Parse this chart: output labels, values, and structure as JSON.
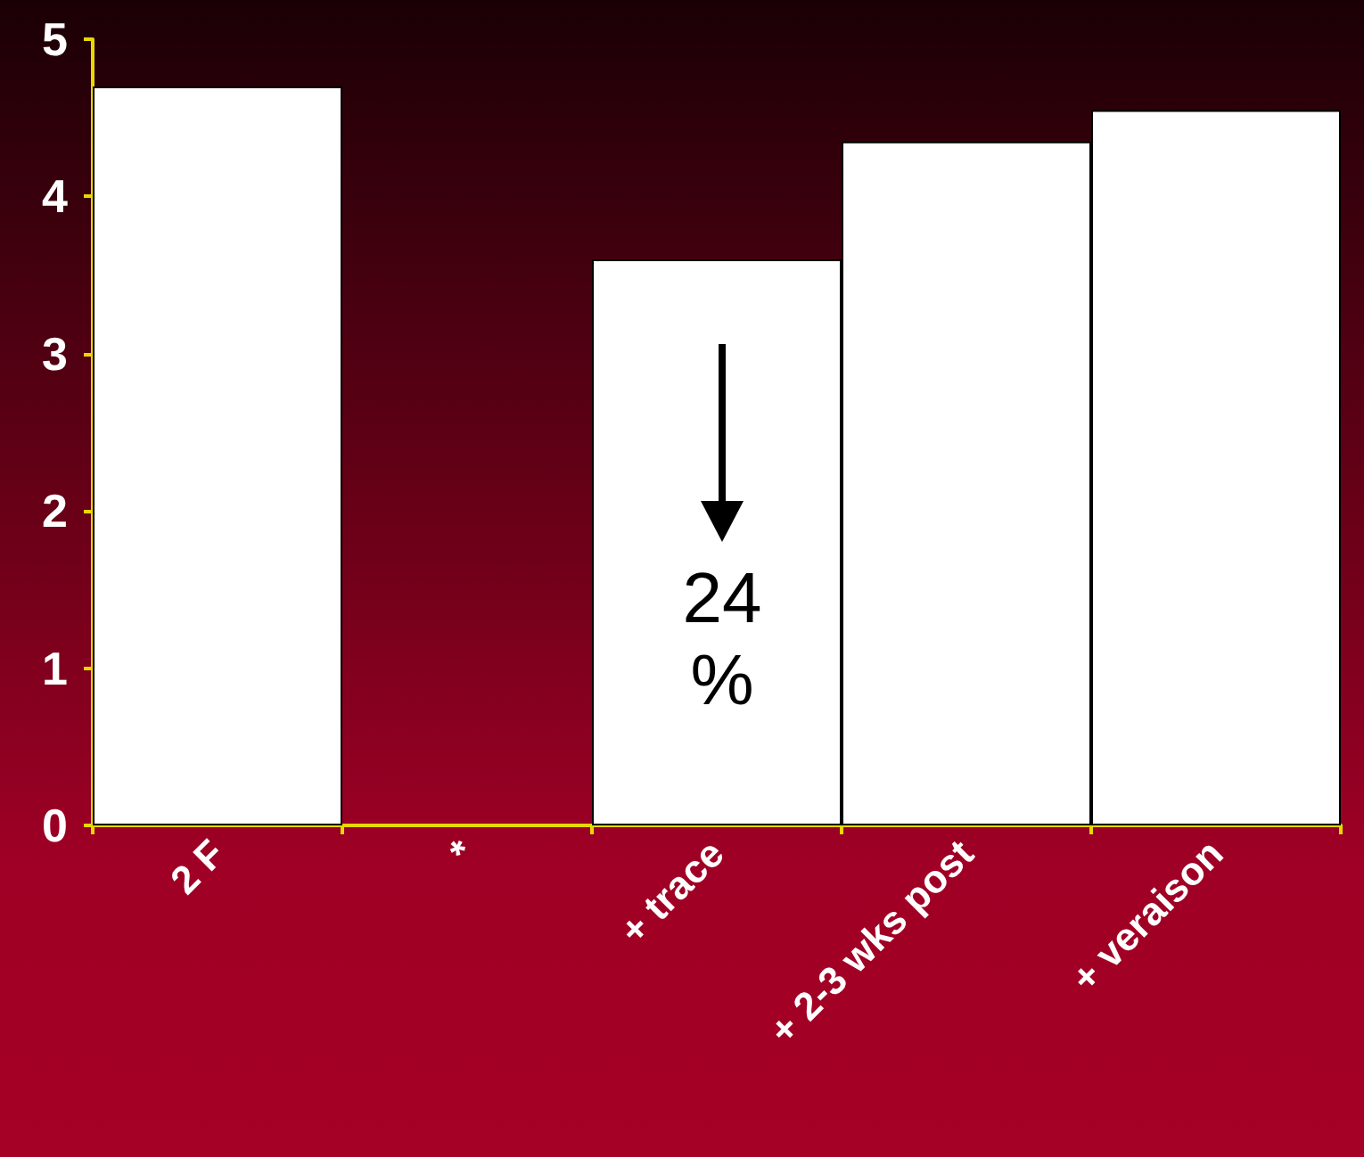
{
  "chart_data": {
    "type": "bar",
    "categories": [
      "2 F",
      "*",
      "+ trace",
      "+ 2-3 wks post",
      "+ veraison"
    ],
    "values": [
      4.7,
      0,
      3.6,
      4.35,
      4.55
    ],
    "color": "#ffffff",
    "ylim": [
      0,
      5
    ],
    "yticks": [
      0,
      1,
      2,
      3,
      4,
      5
    ],
    "grid": false,
    "annotations": [
      "24 %"
    ]
  }
}
